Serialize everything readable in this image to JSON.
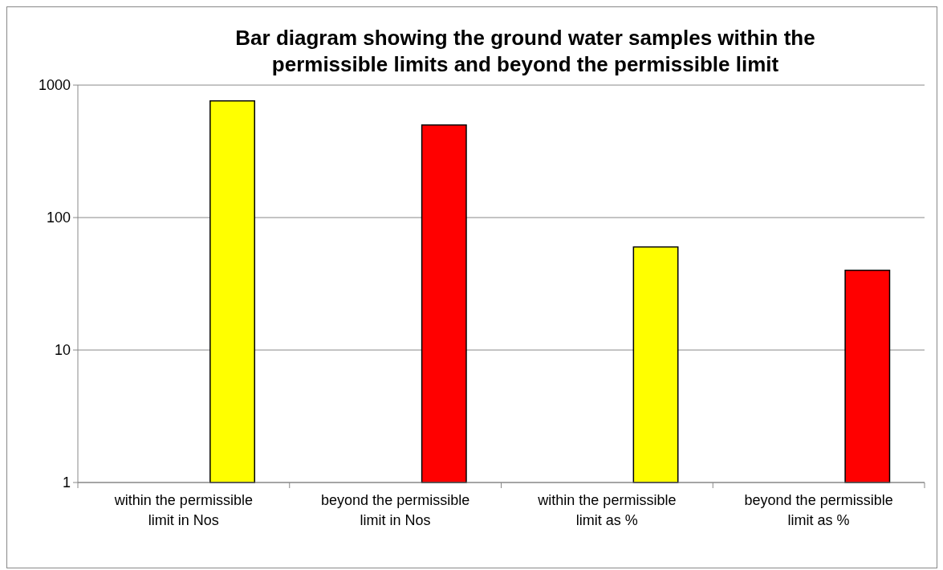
{
  "chart_data": {
    "type": "bar",
    "title": "Bar diagram showing the ground water samples within the permissible limits and beyond the permissible limit",
    "categories": [
      "within the permissible limit in Nos",
      "beyond the permissible limit in Nos",
      "within the permissible limit as %",
      "beyond the permissible limit as %"
    ],
    "values": [
      760,
      500,
      60,
      40
    ],
    "colors": [
      "#ffff00",
      "#ff0000",
      "#ffff00",
      "#ff0000"
    ],
    "ylim": [
      1,
      1000
    ],
    "yticks": [
      1,
      10,
      100,
      1000
    ],
    "log": true,
    "grid": "y"
  }
}
